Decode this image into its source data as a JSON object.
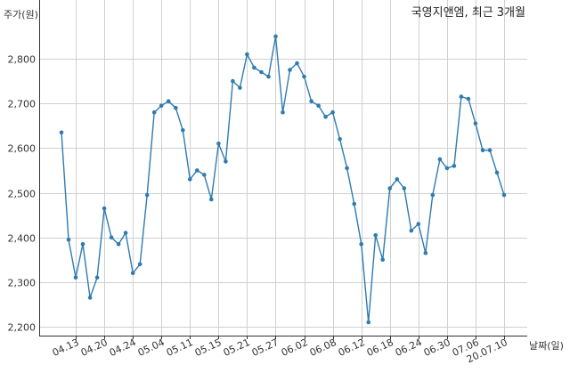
{
  "chart_data": {
    "type": "line",
    "title": "국영지앤엠, 최근 3개월",
    "ylabel": "주가(원)",
    "xlabel": "날짜(일)",
    "ylim": [
      2180,
      2880
    ],
    "grid": true,
    "color": "#2f7bb0",
    "yticks": [
      2200,
      2300,
      2400,
      2500,
      2600,
      2700,
      2800
    ],
    "yticks_text": [
      "2,200",
      "2,300",
      "2,400",
      "2,500",
      "2,600",
      "2,700",
      "2,800"
    ],
    "xtick_labels": [
      "04.13",
      "04.20",
      "04.24",
      "05.04",
      "05.11",
      "05.15",
      "05.21",
      "05.27",
      "06.02",
      "06.08",
      "06.12",
      "06.18",
      "06.24",
      "06.30",
      "07.06",
      "20.07.10"
    ],
    "xtick_indices": [
      2,
      6,
      10,
      14,
      18,
      22,
      26,
      30,
      34,
      38,
      42,
      46,
      50,
      54,
      58,
      62
    ],
    "series": [
      {
        "values": [
          2635,
          2395,
          2310,
          2385,
          2265,
          2310,
          2465,
          2400,
          2385,
          2410,
          2320,
          2340,
          2495,
          2680,
          2695,
          2705,
          2690,
          2640,
          2530,
          2550,
          2540,
          2485,
          2610,
          2570,
          2750,
          2735,
          2810,
          2780,
          2770,
          2760,
          2850,
          2680,
          2775,
          2790,
          2760,
          2705,
          2695,
          2670,
          2680,
          2620,
          2555,
          2475,
          2385,
          2210,
          2405,
          2350,
          2510,
          2530,
          2510,
          2415,
          2430,
          2365,
          2495,
          2575,
          2555,
          2560,
          2715,
          2710,
          2655,
          2595,
          2595,
          2545,
          2495
        ]
      }
    ]
  }
}
